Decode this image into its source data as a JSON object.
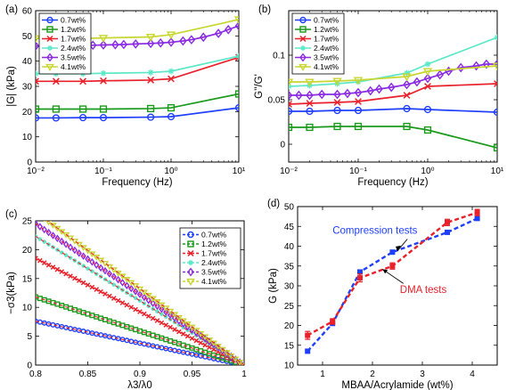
{
  "colors": {
    "blue": "#1f3fff",
    "green": "#1a9a1a",
    "red": "#e8202a",
    "cyan": "#5ce8c8",
    "purple": "#8a2be2",
    "yellow": "#c8d630"
  },
  "chart_data": [
    {
      "id": "a",
      "panel_label": "(a)",
      "type": "line",
      "xscale": "log",
      "xlim": [
        0.01,
        10
      ],
      "ylim": [
        0,
        60
      ],
      "xlabel": "Frequency (Hz)",
      "ylabel": "|G| (kPa)",
      "xticks": [
        0.01,
        0.1,
        1,
        10
      ],
      "xtick_labels": [
        "10⁻²",
        "10⁻¹",
        "10⁰",
        "10¹"
      ],
      "yticks": [
        0,
        10,
        20,
        30,
        40,
        50,
        60
      ],
      "ytick_labels": [
        "0",
        "10",
        "20",
        "30",
        "40",
        "50",
        "60"
      ],
      "legend_position": "top-left",
      "series": [
        {
          "name": "0.7wt%",
          "color": "blue",
          "marker": "circle",
          "x": [
            0.01,
            0.02,
            0.05,
            0.1,
            0.5,
            1,
            10
          ],
          "y": [
            17.5,
            17.5,
            17.6,
            17.6,
            17.8,
            18,
            21.5
          ]
        },
        {
          "name": "1.2wt%",
          "color": "green",
          "marker": "square",
          "x": [
            0.01,
            0.02,
            0.05,
            0.1,
            0.5,
            1,
            10
          ],
          "y": [
            21,
            21,
            21,
            21,
            21.2,
            21.5,
            27
          ]
        },
        {
          "name": "1.7wt%",
          "color": "red",
          "marker": "x",
          "x": [
            0.01,
            0.02,
            0.05,
            0.1,
            0.5,
            1,
            10
          ],
          "y": [
            32,
            32,
            32,
            32.2,
            32.5,
            33,
            41.5
          ]
        },
        {
          "name": "2.4wt%",
          "color": "cyan",
          "marker": "star",
          "x": [
            0.01,
            0.02,
            0.05,
            0.1,
            0.5,
            1,
            10
          ],
          "y": [
            35,
            35,
            35,
            35.2,
            35.5,
            36,
            42
          ]
        },
        {
          "name": "3.5wt%",
          "color": "purple",
          "marker": "diamond",
          "x": [
            0.01,
            0.014,
            0.02,
            0.03,
            0.05,
            0.07,
            0.1,
            0.15,
            0.2,
            0.3,
            0.5,
            0.7,
            1,
            1.5,
            2,
            3,
            5,
            7,
            10
          ],
          "y": [
            46,
            46,
            46,
            46.1,
            46.2,
            46.3,
            46.4,
            46.5,
            46.6,
            46.8,
            47,
            47.2,
            47.5,
            48,
            48.5,
            49.5,
            51,
            52.5,
            54
          ]
        },
        {
          "name": "4.1wt%",
          "color": "yellow",
          "marker": "triangle",
          "x": [
            0.01,
            0.02,
            0.05,
            0.1,
            0.5,
            1,
            10
          ],
          "y": [
            49,
            49,
            49,
            49.2,
            49.6,
            50.5,
            56.5
          ]
        }
      ]
    },
    {
      "id": "b",
      "panel_label": "(b)",
      "type": "line",
      "xscale": "log",
      "xlim": [
        0.01,
        10
      ],
      "ylim": [
        -0.02,
        0.15
      ],
      "xlabel": "Frequency (Hz)",
      "ylabel": "G''/G'",
      "xticks": [
        0.01,
        0.1,
        1,
        10
      ],
      "xtick_labels": [
        "10⁻²",
        "10⁻¹",
        "10⁰",
        "10¹"
      ],
      "yticks": [
        0,
        0.05,
        0.1
      ],
      "ytick_labels": [
        "0",
        "0.05",
        "0.1"
      ],
      "legend_position": "top-left",
      "series": [
        {
          "name": "0.7wt%",
          "color": "blue",
          "marker": "circle",
          "x": [
            0.01,
            0.02,
            0.05,
            0.1,
            0.5,
            1,
            10
          ],
          "y": [
            0.037,
            0.037,
            0.038,
            0.038,
            0.04,
            0.039,
            0.036
          ]
        },
        {
          "name": "1.2wt%",
          "color": "green",
          "marker": "square",
          "x": [
            0.01,
            0.02,
            0.05,
            0.1,
            0.5,
            1,
            10
          ],
          "y": [
            0.019,
            0.019,
            0.02,
            0.02,
            0.02,
            0.016,
            -0.004
          ]
        },
        {
          "name": "1.7wt%",
          "color": "red",
          "marker": "x",
          "x": [
            0.01,
            0.02,
            0.05,
            0.1,
            0.5,
            1,
            10
          ],
          "y": [
            0.045,
            0.046,
            0.047,
            0.048,
            0.055,
            0.065,
            0.068
          ]
        },
        {
          "name": "2.4wt%",
          "color": "cyan",
          "marker": "star",
          "x": [
            0.01,
            0.02,
            0.05,
            0.1,
            0.5,
            1,
            10
          ],
          "y": [
            0.065,
            0.066,
            0.068,
            0.07,
            0.08,
            0.09,
            0.12
          ]
        },
        {
          "name": "3.5wt%",
          "color": "purple",
          "marker": "diamond",
          "x": [
            0.01,
            0.014,
            0.02,
            0.03,
            0.05,
            0.07,
            0.1,
            0.15,
            0.2,
            0.3,
            0.5,
            0.7,
            1,
            1.5,
            2,
            3,
            5,
            7,
            10
          ],
          "y": [
            0.055,
            0.055,
            0.055,
            0.056,
            0.056,
            0.057,
            0.058,
            0.06,
            0.062,
            0.064,
            0.067,
            0.07,
            0.074,
            0.078,
            0.082,
            0.086,
            0.088,
            0.09,
            0.09
          ]
        },
        {
          "name": "4.1wt%",
          "color": "yellow",
          "marker": "triangle",
          "x": [
            0.01,
            0.02,
            0.05,
            0.1,
            0.5,
            1,
            10
          ],
          "y": [
            0.07,
            0.07,
            0.071,
            0.072,
            0.076,
            0.082,
            0.088
          ]
        }
      ]
    },
    {
      "id": "c",
      "panel_label": "(c)",
      "type": "line",
      "xscale": "linear",
      "xlim": [
        0.8,
        1.0
      ],
      "ylim": [
        0,
        25
      ],
      "xlabel": "λ3/λ0",
      "ylabel": "−σ3(kPa)",
      "xticks": [
        0.8,
        0.85,
        0.9,
        0.95,
        1
      ],
      "xtick_labels": [
        "0.8",
        "0.85",
        "0.9",
        "0.95",
        "1"
      ],
      "yticks": [
        0,
        5,
        10,
        15,
        20,
        25
      ],
      "ytick_labels": [
        "0",
        "5",
        "10",
        "15",
        "20",
        "25"
      ],
      "legend_position": "top-right",
      "note": "measured points with dashed fit lines",
      "series": [
        {
          "name": "0.7wt%",
          "color": "blue",
          "marker": "circle",
          "x": [
            0.8,
            1.0
          ],
          "y": [
            7.6,
            0
          ]
        },
        {
          "name": "1.2wt%",
          "color": "green",
          "marker": "square",
          "x": [
            0.8,
            1.0
          ],
          "y": [
            11.8,
            0
          ]
        },
        {
          "name": "1.7wt%",
          "color": "red",
          "marker": "x",
          "x": [
            0.8,
            1.0
          ],
          "y": [
            18.5,
            0
          ]
        },
        {
          "name": "2.4wt%",
          "color": "cyan",
          "marker": "star",
          "x": [
            0.8,
            1.0
          ],
          "y": [
            22.3,
            0
          ]
        },
        {
          "name": "3.5wt%",
          "color": "purple",
          "marker": "diamond",
          "x": [
            0.8,
            1.0
          ],
          "y": [
            24.5,
            0
          ]
        },
        {
          "name": "4.1wt%",
          "color": "yellow",
          "marker": "triangle",
          "x": [
            0.8,
            1.0
          ],
          "y": [
            26.5,
            0
          ]
        }
      ]
    },
    {
      "id": "d",
      "panel_label": "(d)",
      "type": "line",
      "xscale": "linear",
      "xlim": [
        0.5,
        4.5
      ],
      "ylim": [
        10,
        50
      ],
      "xlabel": "MBAA/Acrylamide (wt%)",
      "ylabel": "G (kPa)",
      "xticks": [
        1,
        2,
        3,
        4
      ],
      "xtick_labels": [
        "1",
        "2",
        "3",
        "4"
      ],
      "yticks": [
        10,
        15,
        20,
        25,
        30,
        35,
        40,
        45,
        50
      ],
      "ytick_labels": [
        "10",
        "15",
        "20",
        "25",
        "30",
        "35",
        "40",
        "45",
        "50"
      ],
      "annotations": [
        "Compression tests",
        "DMA tests"
      ],
      "series": [
        {
          "name": "Compression tests",
          "color": "blue",
          "marker": "square",
          "x": [
            0.7,
            1.2,
            1.75,
            2.4,
            3.5,
            4.1
          ],
          "y": [
            13.5,
            20.5,
            33.5,
            38.5,
            43.5,
            47
          ]
        },
        {
          "name": "DMA tests",
          "color": "red",
          "marker": "square",
          "x": [
            0.7,
            1.2,
            1.75,
            2.4,
            3.5,
            4.1
          ],
          "y": [
            17.5,
            21,
            32,
            35,
            46,
            48.5
          ],
          "error": [
            1,
            0.7,
            1,
            0.8,
            0.8,
            0.8
          ]
        }
      ]
    }
  ]
}
